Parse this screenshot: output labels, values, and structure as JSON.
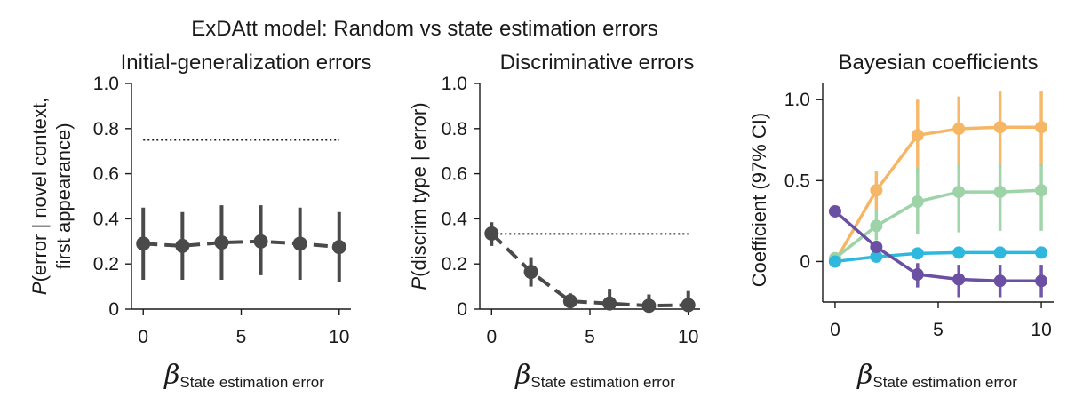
{
  "figure": {
    "title": "ExDAtt model: Random vs state estimation errors"
  },
  "chart_data": [
    {
      "type": "line",
      "title": "Initial-generalization errors",
      "ylabel_prefix": "P",
      "ylabel_line1": "(error | novel context,",
      "ylabel_line2": "first appearance)",
      "xlabel_symbol": "β",
      "xlabel_subscript": "State estimation error",
      "xlim": [
        -0.6,
        10.6
      ],
      "ylim": [
        0,
        1.0
      ],
      "xticks": [
        0,
        5,
        10
      ],
      "xtick_labels": [
        "0",
        "5",
        "10"
      ],
      "yticks": [
        0,
        0.2,
        0.4,
        0.6,
        0.8,
        1.0
      ],
      "ytick_labels": [
        "0",
        "0.2",
        "0.4",
        "0.6",
        "0.8",
        "1.0"
      ],
      "reference_line": 0.75,
      "color": "#4a4a4a",
      "series": [
        {
          "x": [
            0,
            2,
            4,
            6,
            8,
            10
          ],
          "y": [
            0.29,
            0.28,
            0.295,
            0.3,
            0.29,
            0.275
          ],
          "lower": [
            0.13,
            0.13,
            0.13,
            0.15,
            0.13,
            0.12
          ],
          "upper": [
            0.45,
            0.43,
            0.46,
            0.46,
            0.45,
            0.43
          ]
        }
      ]
    },
    {
      "type": "line",
      "title": "Discriminative errors",
      "ylabel_prefix": "P",
      "ylabel_line1": "(discrim type | error)",
      "ylabel_line2": "",
      "xlabel_symbol": "β",
      "xlabel_subscript": "State estimation error",
      "xlim": [
        -0.6,
        10.6
      ],
      "ylim": [
        0,
        1.0
      ],
      "xticks": [
        0,
        5,
        10
      ],
      "xtick_labels": [
        "0",
        "5",
        "10"
      ],
      "yticks": [
        0,
        0.2,
        0.4,
        0.6,
        0.8,
        1.0
      ],
      "ytick_labels": [
        "0",
        "0.2",
        "0.4",
        "0.6",
        "0.8",
        "1.0"
      ],
      "reference_line": 0.333,
      "color": "#4a4a4a",
      "series": [
        {
          "x": [
            0,
            2,
            4,
            6,
            8,
            10
          ],
          "y": [
            0.335,
            0.165,
            0.035,
            0.025,
            0.015,
            0.018
          ],
          "lower": [
            0.28,
            0.1,
            0.0,
            0.0,
            0.0,
            0.0
          ],
          "upper": [
            0.385,
            0.23,
            0.07,
            0.09,
            0.065,
            0.08
          ]
        }
      ]
    },
    {
      "type": "line",
      "title": "Bayesian coefficients",
      "ylabel_prefix": "",
      "ylabel_line1": "Coefficient (97% CI)",
      "ylabel_line2": "",
      "xlabel_symbol": "β",
      "xlabel_subscript": "State estimation error",
      "xlim": [
        -0.6,
        10.6
      ],
      "ylim": [
        -0.25,
        1.1
      ],
      "xticks": [
        0,
        5,
        10
      ],
      "xtick_labels": [
        "0",
        "5",
        "10"
      ],
      "yticks": [
        0,
        0.5,
        1.0
      ],
      "ytick_labels": [
        "0",
        "0.5",
        "1.0"
      ],
      "reference_line": null,
      "series": [
        {
          "color": "#F5B665",
          "x": [
            0,
            2,
            4,
            6,
            8,
            10
          ],
          "y": [
            0.0,
            0.44,
            0.78,
            0.82,
            0.83,
            0.83
          ],
          "lower": [
            -0.02,
            0.32,
            0.55,
            0.58,
            0.58,
            0.59
          ],
          "upper": [
            0.02,
            0.56,
            1.0,
            1.02,
            1.05,
            1.05
          ]
        },
        {
          "color": "#9ED3A8",
          "x": [
            0,
            2,
            4,
            6,
            8,
            10
          ],
          "y": [
            0.02,
            0.22,
            0.37,
            0.43,
            0.43,
            0.44
          ],
          "lower": [
            0.0,
            0.13,
            0.17,
            0.18,
            0.19,
            0.19
          ],
          "upper": [
            0.04,
            0.32,
            0.58,
            0.6,
            0.6,
            0.6
          ]
        },
        {
          "color": "#2EB8DE",
          "x": [
            0,
            2,
            4,
            6,
            8,
            10
          ],
          "y": [
            0.0,
            0.03,
            0.05,
            0.055,
            0.055,
            0.055
          ],
          "lower": [
            -0.01,
            0.01,
            0.02,
            0.02,
            0.02,
            0.02
          ],
          "upper": [
            0.01,
            0.05,
            0.08,
            0.09,
            0.09,
            0.09
          ]
        },
        {
          "color": "#6A4FA3",
          "x": [
            0,
            2,
            4,
            6,
            8,
            10
          ],
          "y": [
            0.31,
            0.09,
            -0.08,
            -0.11,
            -0.12,
            -0.12
          ],
          "lower": [
            0.3,
            0.07,
            -0.16,
            -0.22,
            -0.22,
            -0.22
          ],
          "upper": [
            0.32,
            0.11,
            -0.01,
            -0.02,
            -0.02,
            -0.02
          ]
        }
      ]
    }
  ]
}
